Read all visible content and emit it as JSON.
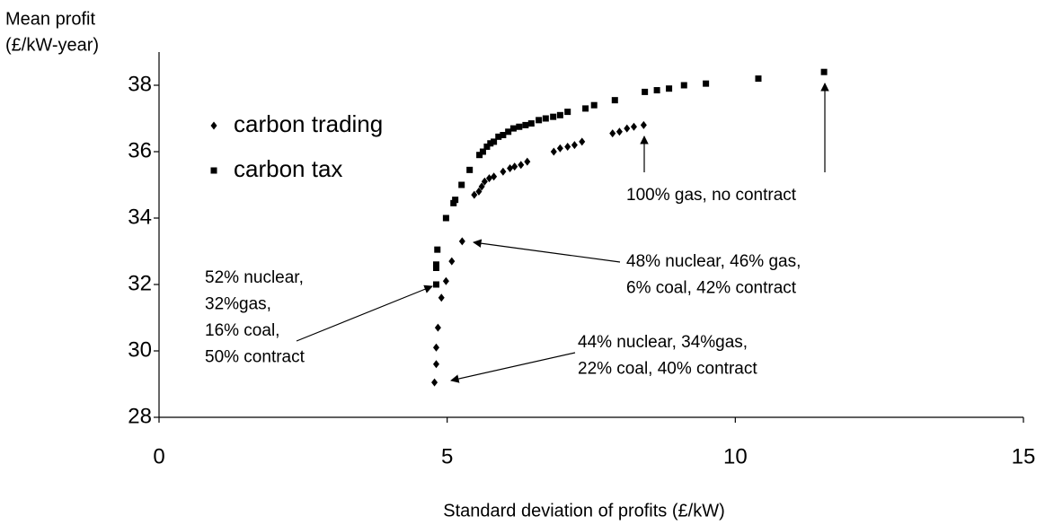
{
  "chart_data": {
    "type": "scatter",
    "x_label": "Standard deviation of profits (£/kW)",
    "y_label": [
      "Mean profit",
      "(£/kW-year)"
    ],
    "xlim": [
      0,
      15
    ],
    "xticks": [
      0,
      5,
      10,
      15
    ],
    "ylim": [
      28,
      39
    ],
    "yticks": [
      28,
      30,
      32,
      34,
      36,
      38
    ],
    "legend": "upper left",
    "series": [
      {
        "name": "carbon trading",
        "color": "#000000",
        "marker": "diamond",
        "x": [
          4.78,
          4.81,
          4.81,
          4.84,
          4.9,
          4.98,
          5.08,
          5.26,
          5.47,
          5.55,
          5.6,
          5.65,
          5.73,
          5.81,
          5.97,
          6.09,
          6.17,
          6.28,
          6.39,
          6.85,
          6.96,
          7.09,
          7.21,
          7.34,
          7.87,
          7.99,
          8.12,
          8.24,
          8.41
        ],
        "y": [
          29.05,
          29.6,
          30.1,
          30.7,
          31.6,
          32.1,
          32.7,
          33.3,
          34.7,
          34.8,
          34.95,
          35.1,
          35.2,
          35.25,
          35.4,
          35.5,
          35.55,
          35.6,
          35.7,
          36.0,
          36.1,
          36.15,
          36.2,
          36.3,
          36.55,
          36.6,
          36.7,
          36.75,
          36.8
        ]
      },
      {
        "name": "carbon tax",
        "color": "#000000",
        "marker": "square",
        "x": [
          4.81,
          4.81,
          4.81,
          4.83,
          4.98,
          5.11,
          5.14,
          5.25,
          5.39,
          5.56,
          5.62,
          5.69,
          5.75,
          5.81,
          5.89,
          5.97,
          6.06,
          6.15,
          6.25,
          6.36,
          6.46,
          6.59,
          6.71,
          6.84,
          6.96,
          7.09,
          7.4,
          7.55,
          7.91,
          8.43,
          8.64,
          8.85,
          9.11,
          9.49,
          10.4,
          11.54
        ],
        "y": [
          32.0,
          32.5,
          32.6,
          33.05,
          34.0,
          34.45,
          34.55,
          35.0,
          35.45,
          35.9,
          36.0,
          36.15,
          36.25,
          36.3,
          36.45,
          36.5,
          36.6,
          36.7,
          36.75,
          36.8,
          36.85,
          36.95,
          37.0,
          37.05,
          37.1,
          37.2,
          37.3,
          37.4,
          37.55,
          37.8,
          37.85,
          37.9,
          38.0,
          38.05,
          38.2,
          38.4
        ]
      }
    ],
    "annotations": [
      {
        "lines": [
          "52% nuclear,",
          "32%gas,",
          "16% coal,",
          "50% contract"
        ]
      },
      {
        "lines": [
          "48% nuclear, 46% gas,",
          "6% coal, 42% contract"
        ]
      },
      {
        "lines": [
          "44% nuclear, 34%gas,",
          "22% coal, 40% contract"
        ]
      },
      {
        "lines": [
          "100% gas, no contract"
        ]
      }
    ]
  }
}
